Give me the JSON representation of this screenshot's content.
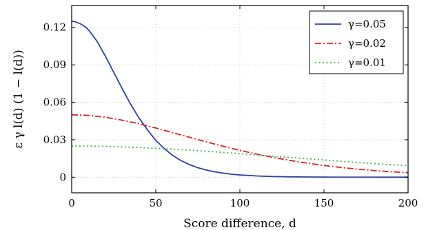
{
  "chart_data": {
    "type": "line",
    "title": "",
    "xlabel": "Score difference, d",
    "ylabel": "ε γ l(d) (1 − l(d))",
    "xlim": [
      0,
      200
    ],
    "ylim": [
      -0.0125,
      0.1375
    ],
    "xticks": [
      0,
      50,
      100,
      150,
      200
    ],
    "xtick_labels": [
      "0",
      "50",
      "100",
      "150",
      "200"
    ],
    "yticks": [
      0,
      0.03,
      0.06,
      0.09,
      0.12
    ],
    "ytick_labels": [
      "0",
      "0.03",
      "0.06",
      "0.09",
      "0.12"
    ],
    "grid": true,
    "legend_position": "top-right",
    "series": [
      {
        "name": "γ=0.05",
        "color": "#2b3f9a",
        "dash": "solid",
        "x": [
          0,
          2,
          5,
          8,
          10,
          15,
          20,
          25,
          30,
          35,
          40,
          45,
          50,
          55,
          60,
          65,
          70,
          75,
          80,
          85,
          90,
          95,
          100,
          110,
          120,
          130,
          140,
          150,
          160,
          170,
          180,
          190,
          200
        ],
        "y": [
          0.125,
          0.1245,
          0.123,
          0.1205,
          0.118,
          0.109,
          0.097,
          0.084,
          0.071,
          0.0585,
          0.0475,
          0.038,
          0.0295,
          0.023,
          0.0175,
          0.0133,
          0.0101,
          0.0076,
          0.0058,
          0.0043,
          0.0033,
          0.0024,
          0.0018,
          0.001,
          0.00055,
          0.0003,
          0.00017,
          0.0001,
          5e-05,
          3e-05,
          2e-05,
          1e-05,
          5e-06
        ]
      },
      {
        "name": "γ=0.02",
        "color": "#d62020",
        "dash": "dashdot",
        "x": [
          0,
          10,
          20,
          30,
          40,
          50,
          60,
          70,
          80,
          90,
          100,
          110,
          120,
          130,
          140,
          150,
          160,
          170,
          180,
          190,
          200
        ],
        "y": [
          0.05,
          0.0495,
          0.048,
          0.0457,
          0.0428,
          0.0394,
          0.0357,
          0.032,
          0.0283,
          0.0248,
          0.0215,
          0.0185,
          0.0158,
          0.0134,
          0.0113,
          0.0094,
          0.0078,
          0.0065,
          0.0053,
          0.0044,
          0.0036
        ]
      },
      {
        "name": "γ=0.01",
        "color": "#3fb53f",
        "dash": "dotted",
        "x": [
          0,
          20,
          40,
          60,
          80,
          100,
          120,
          140,
          160,
          180,
          200
        ],
        "y": [
          0.025,
          0.0247,
          0.0238,
          0.0225,
          0.0208,
          0.0189,
          0.0168,
          0.0148,
          0.0128,
          0.0109,
          0.0092
        ]
      }
    ]
  }
}
